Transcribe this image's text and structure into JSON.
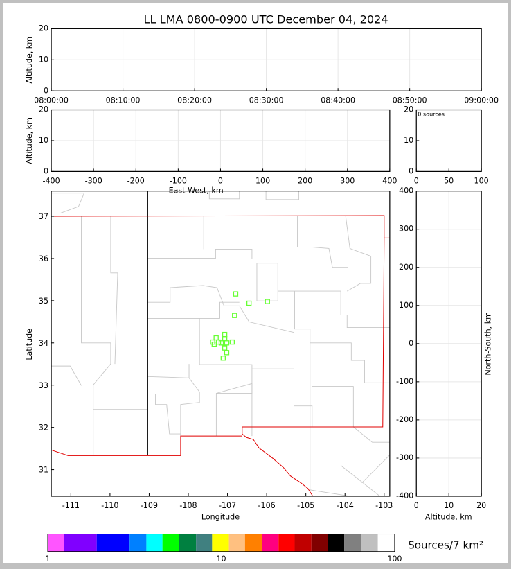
{
  "chart_data": [
    {
      "panel": "altitude-vs-time",
      "type": "scatter",
      "title": "LL LMA 0800-0900 UTC December 04, 2024",
      "ylabel": "Altitude, km",
      "ylim": [
        0,
        20
      ],
      "yticks": [
        "0",
        "10",
        "20"
      ],
      "xticks": [
        "08:00:00",
        "08:10:00",
        "08:20:00",
        "08:30:00",
        "08:40:00",
        "08:50:00",
        "09:00:00"
      ],
      "points": [],
      "grid": true
    },
    {
      "panel": "altitude-vs-east-west",
      "type": "scatter",
      "xlabel": "East-West, km",
      "ylabel": "Altitude, km",
      "xlim": [
        -400,
        400
      ],
      "ylim": [
        0,
        20
      ],
      "xticks": [
        "-400",
        "-300",
        "-200",
        "-100",
        "0",
        "100",
        "200",
        "300",
        "400"
      ],
      "yticks": [
        "0",
        "10",
        "20"
      ],
      "points": [],
      "grid": true
    },
    {
      "panel": "source-histogram",
      "type": "bar",
      "annotation": "0 sources",
      "xlim": [
        0,
        100
      ],
      "ylim": [
        0,
        20
      ],
      "xticks": [
        "0",
        "50",
        "100"
      ],
      "yticks": [
        "0",
        "10",
        "20"
      ]
    },
    {
      "panel": "plan-view",
      "type": "scatter",
      "xlabel": "Longitude",
      "ylabel": "Latitude",
      "xlim": [
        -111.5,
        -102.86
      ],
      "ylim": [
        30.37,
        37.6
      ],
      "xticks": [
        "-111",
        "-110",
        "-109",
        "-108",
        "-107",
        "-106",
        "-105",
        "-104",
        "-103"
      ],
      "yticks": [
        "31",
        "32",
        "33",
        "34",
        "35",
        "36",
        "37"
      ],
      "marker_color": "#66ff33",
      "points": [
        [
          -106.79,
          35.16
        ],
        [
          -106.45,
          34.94
        ],
        [
          -105.98,
          34.98
        ],
        [
          -106.82,
          34.65
        ],
        [
          -107.07,
          34.2
        ],
        [
          -107.07,
          34.1
        ],
        [
          -107.29,
          34.12
        ],
        [
          -107.38,
          34.02
        ],
        [
          -107.23,
          34.02
        ],
        [
          -107.16,
          34.0
        ],
        [
          -107.02,
          34.0
        ],
        [
          -106.88,
          34.02
        ],
        [
          -107.34,
          33.97
        ],
        [
          -107.07,
          33.88
        ],
        [
          -107.02,
          33.77
        ],
        [
          -107.11,
          33.64
        ]
      ]
    },
    {
      "panel": "north-south-vs-altitude",
      "type": "scatter",
      "xlabel": "Altitude, km",
      "ylabel": "North-South, km",
      "xlim": [
        0,
        20
      ],
      "ylim": [
        -400,
        400
      ],
      "xticks": [
        "0",
        "10",
        "20"
      ],
      "yticks": [
        "400",
        "300",
        "200",
        "100",
        "0",
        "-100",
        "-200",
        "-300",
        "-400"
      ],
      "points": [],
      "grid": true
    },
    {
      "panel": "colorbar",
      "type": "colorbar",
      "label": "Sources/7 km²",
      "scale": "log",
      "range": [
        1,
        100
      ],
      "ticks": [
        "1",
        "10",
        "100"
      ],
      "colors": [
        "#ff55ff",
        "#8000ff",
        "#0000ff",
        "#0080ff",
        "#00ffff",
        "#00ff00",
        "#008040",
        "#408080",
        "#ffff00",
        "#ffc080",
        "#ff8000",
        "#ff0080",
        "#ff0000",
        "#c00000",
        "#800000",
        "#000000",
        "#808080",
        "#c0c0c0",
        "#ffffff"
      ]
    }
  ]
}
